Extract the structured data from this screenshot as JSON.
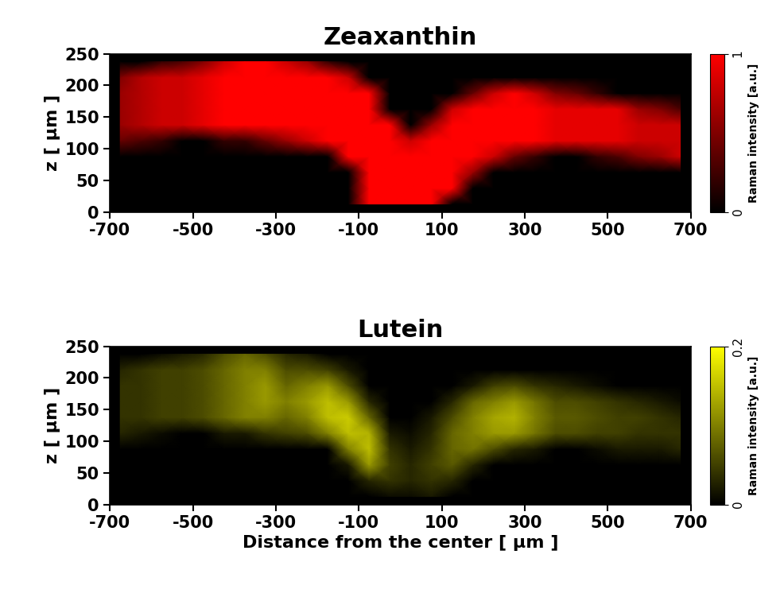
{
  "chart_data": [
    {
      "type": "heatmap",
      "title": "Zeaxanthin",
      "ylabel": "z [ μm ]",
      "color": "#ff0000",
      "xlim": [
        -700,
        700
      ],
      "xticks": [
        -700,
        -500,
        -300,
        -100,
        100,
        300,
        500,
        700
      ],
      "ylim": [
        0,
        250
      ],
      "yticks": [
        0,
        50,
        100,
        150,
        200,
        250
      ],
      "x_edges": [
        -700,
        -650,
        -600,
        -550,
        -500,
        -450,
        -400,
        -350,
        -300,
        -250,
        -200,
        -150,
        -100,
        -50,
        0,
        50,
        100,
        150,
        200,
        250,
        300,
        350,
        400,
        450,
        500,
        550,
        600,
        650,
        700
      ],
      "y_edges": [
        0,
        25,
        50,
        75,
        100,
        125,
        150,
        175,
        200,
        225,
        250
      ],
      "cells": [
        [
          0,
          0,
          0,
          0,
          0,
          0,
          0,
          0,
          0,
          0,
          0,
          0,
          1,
          1,
          1,
          1,
          0,
          0,
          0,
          0,
          0,
          0,
          0,
          0,
          0,
          0,
          0,
          0
        ],
        [
          0,
          0,
          0,
          0,
          0,
          0,
          0,
          0,
          0,
          0,
          0,
          0,
          1,
          1,
          1,
          1,
          1,
          0,
          0,
          0,
          0,
          0,
          0,
          0,
          0,
          0,
          0,
          0
        ],
        [
          0,
          0,
          0,
          0,
          0,
          0,
          0,
          0,
          0,
          0,
          0,
          0,
          1,
          1,
          1,
          1,
          1,
          0.6,
          0,
          0,
          0,
          0,
          0,
          0,
          0,
          0,
          0,
          0
        ],
        [
          0,
          0,
          0,
          0,
          0,
          0,
          0,
          0,
          0,
          0,
          0,
          1,
          1,
          1,
          1,
          1,
          1,
          1,
          0.8,
          0.4,
          0.2,
          0,
          0,
          0.2,
          0.3,
          0.5,
          0.6,
          0.8
        ],
        [
          0.4,
          0.3,
          0.2,
          0,
          0,
          0.2,
          0.2,
          0.4,
          0.6,
          0.8,
          1,
          1,
          1,
          1,
          0.8,
          1,
          1,
          1,
          1,
          1,
          1,
          0.9,
          0.9,
          0.9,
          0.9,
          0.8,
          0.8,
          0.8
        ],
        [
          0.6,
          0.7,
          0.8,
          0.8,
          0.9,
          1,
          1,
          1,
          1,
          1,
          1,
          1,
          1,
          1,
          0,
          0.6,
          1,
          1,
          1,
          1,
          1,
          0.9,
          0.9,
          0.9,
          0.9,
          0.8,
          0.8,
          0.8
        ],
        [
          0.6,
          0.7,
          0.8,
          0.8,
          0.9,
          1,
          1,
          1,
          1,
          1,
          1,
          1,
          1,
          0,
          0,
          0,
          0.8,
          1,
          1,
          1,
          1,
          0.9,
          0.9,
          0.9,
          0.9,
          0.6,
          0.5,
          0.3
        ],
        [
          0.6,
          0.7,
          0.8,
          0.8,
          0.9,
          1,
          1,
          1,
          1,
          1,
          1,
          1,
          1,
          0,
          0,
          0,
          0,
          0.4,
          0.8,
          1,
          0.8,
          0.5,
          0.4,
          0.2,
          0,
          0,
          0,
          0
        ],
        [
          0.5,
          0.7,
          0.8,
          0.8,
          0.9,
          1,
          1,
          1,
          1,
          1,
          1,
          0.8,
          0,
          0,
          0,
          0,
          0,
          0,
          0,
          0,
          0,
          0,
          0,
          0,
          0,
          0,
          0,
          0
        ],
        [
          0,
          0,
          0.2,
          0.3,
          0.5,
          0.8,
          1,
          1,
          0.8,
          0.6,
          0.2,
          0,
          0,
          0,
          0,
          0,
          0,
          0,
          0,
          0,
          0,
          0,
          0,
          0,
          0,
          0,
          0,
          0
        ]
      ],
      "colorbar": {
        "label": "Raman intensity [a.u.]",
        "range": [
          0,
          1
        ],
        "ticks": [
          0,
          1
        ]
      }
    },
    {
      "type": "heatmap",
      "title": "Lutein",
      "xlabel": "Distance from the center [ μm ]",
      "ylabel": "z [ μm ]",
      "color": "#ffff00",
      "xlim": [
        -700,
        700
      ],
      "xticks": [
        -700,
        -500,
        -300,
        -100,
        100,
        300,
        500,
        700
      ],
      "ylim": [
        0,
        250
      ],
      "yticks": [
        0,
        50,
        100,
        150,
        200,
        250
      ],
      "x_edges": [
        -700,
        -650,
        -600,
        -550,
        -500,
        -450,
        -400,
        -350,
        -300,
        -250,
        -200,
        -150,
        -100,
        -50,
        0,
        50,
        100,
        150,
        200,
        250,
        300,
        350,
        400,
        450,
        500,
        550,
        600,
        650,
        700
      ],
      "y_edges": [
        0,
        25,
        50,
        75,
        100,
        125,
        150,
        175,
        200,
        225,
        250
      ],
      "cells": [
        [
          0,
          0,
          0,
          0,
          0,
          0,
          0,
          0,
          0,
          0,
          0,
          0,
          0,
          0.01,
          0.01,
          0.02,
          0,
          0,
          0,
          0,
          0,
          0,
          0,
          0,
          0,
          0,
          0,
          0
        ],
        [
          0,
          0,
          0,
          0,
          0,
          0,
          0,
          0,
          0,
          0,
          0,
          0,
          0.03,
          0.04,
          0.03,
          0.04,
          0.03,
          0,
          0,
          0,
          0,
          0,
          0,
          0,
          0,
          0,
          0,
          0
        ],
        [
          0,
          0,
          0,
          0,
          0,
          0,
          0,
          0,
          0,
          0,
          0,
          0.02,
          0.12,
          0.05,
          0.03,
          0.05,
          0.07,
          0.03,
          0,
          0,
          0,
          0,
          0,
          0,
          0,
          0,
          0,
          0
        ],
        [
          0,
          0,
          0,
          0,
          0,
          0,
          0,
          0,
          0,
          0,
          0,
          0.1,
          0.15,
          0.04,
          0.02,
          0.04,
          0.08,
          0.09,
          0.06,
          0.03,
          0.02,
          0,
          0,
          0.01,
          0.02,
          0.02,
          0.02,
          0.03
        ],
        [
          0.03,
          0.02,
          0.01,
          0,
          0,
          0.02,
          0.02,
          0.04,
          0.05,
          0.06,
          0.1,
          0.15,
          0.14,
          0.02,
          0.01,
          0.03,
          0.08,
          0.1,
          0.12,
          0.12,
          0.09,
          0.06,
          0.06,
          0.05,
          0.05,
          0.04,
          0.04,
          0.04
        ],
        [
          0.04,
          0.04,
          0.05,
          0.05,
          0.06,
          0.08,
          0.1,
          0.1,
          0.08,
          0.1,
          0.15,
          0.16,
          0.08,
          0,
          0,
          0.02,
          0.06,
          0.1,
          0.13,
          0.14,
          0.1,
          0.07,
          0.07,
          0.06,
          0.05,
          0.05,
          0.04,
          0.03
        ],
        [
          0.04,
          0.04,
          0.05,
          0.05,
          0.06,
          0.08,
          0.1,
          0.12,
          0.1,
          0.12,
          0.15,
          0.12,
          0.03,
          0,
          0,
          0,
          0.03,
          0.08,
          0.1,
          0.12,
          0.09,
          0.06,
          0.06,
          0.05,
          0.04,
          0.03,
          0.02,
          0.01
        ],
        [
          0.04,
          0.04,
          0.05,
          0.05,
          0.06,
          0.08,
          0.1,
          0.12,
          0.08,
          0.1,
          0.12,
          0.06,
          0,
          0,
          0,
          0,
          0,
          0.02,
          0.05,
          0.06,
          0.04,
          0.03,
          0.02,
          0.01,
          0,
          0,
          0,
          0
        ],
        [
          0.03,
          0.04,
          0.05,
          0.05,
          0.06,
          0.08,
          0.1,
          0.1,
          0.06,
          0.06,
          0.05,
          0.02,
          0,
          0,
          0,
          0,
          0,
          0,
          0,
          0,
          0,
          0,
          0,
          0,
          0,
          0,
          0,
          0
        ],
        [
          0,
          0,
          0.01,
          0.02,
          0.03,
          0.06,
          0.08,
          0.06,
          0.03,
          0.02,
          0,
          0,
          0,
          0,
          0,
          0,
          0,
          0,
          0,
          0,
          0,
          0,
          0,
          0,
          0,
          0,
          0,
          0
        ]
      ],
      "colorbar": {
        "label": "Raman intensity [a.u.]",
        "range": [
          0,
          0.2
        ],
        "ticks": [
          0,
          0.2
        ]
      }
    }
  ]
}
